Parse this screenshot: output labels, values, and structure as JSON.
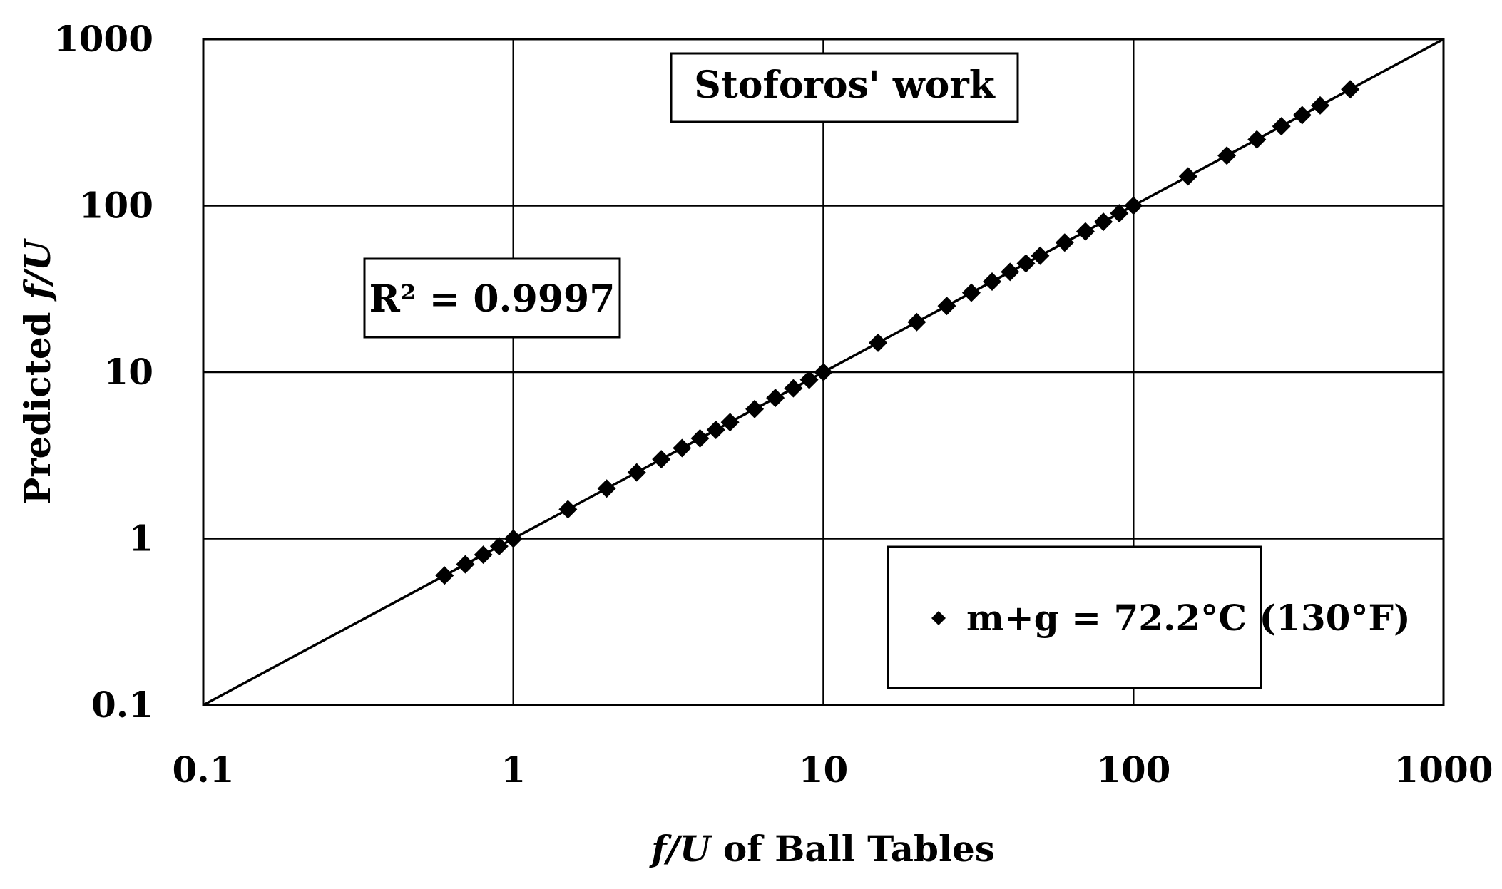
{
  "chart_data": {
    "type": "scatter",
    "title": "",
    "xlabel": "f/U of Ball Tables",
    "ylabel": "Predicted f/U",
    "xlabel_parts": {
      "italic": "f/U",
      "rest": " of Ball Tables"
    },
    "ylabel_parts": {
      "rest": "Predicted ",
      "italic": "f/U"
    },
    "xscale": "log",
    "yscale": "log",
    "xlim": [
      0.1,
      1000
    ],
    "ylim": [
      0.1,
      1000
    ],
    "x_ticks": [
      "0.1",
      "1",
      "10",
      "100",
      "1000"
    ],
    "y_ticks": [
      "0.1",
      "1",
      "10",
      "100",
      "1000"
    ],
    "grid": true,
    "legend_position": "bottom-right",
    "annotations": {
      "source_label": "Stoforos' work",
      "r2_label": "R² = 0.9997"
    },
    "line": {
      "x": [
        0.1,
        1000
      ],
      "y": [
        0.1,
        1000
      ]
    },
    "series": [
      {
        "name": "m+g = 72.2°C (130°F)",
        "marker": "diamond",
        "color": "#000000",
        "x": [
          0.6,
          0.7,
          0.8,
          0.9,
          1,
          1.5,
          2,
          2.5,
          3,
          3.5,
          4,
          4.5,
          5,
          6,
          7,
          8,
          9,
          10,
          15,
          20,
          25,
          30,
          35,
          40,
          45,
          50,
          60,
          70,
          80,
          90,
          100,
          150,
          200,
          250,
          300,
          350,
          400,
          500
        ],
        "y": [
          0.6,
          0.7,
          0.8,
          0.9,
          1,
          1.5,
          2,
          2.5,
          3,
          3.5,
          4,
          4.5,
          5,
          6,
          7,
          8,
          9,
          10,
          15,
          20,
          25,
          30,
          35,
          40,
          45,
          50,
          60,
          70,
          80,
          90,
          100,
          150,
          200,
          250,
          300,
          350,
          400,
          500
        ]
      }
    ]
  },
  "colors": {
    "ink": "#000000",
    "background": "#ffffff"
  }
}
